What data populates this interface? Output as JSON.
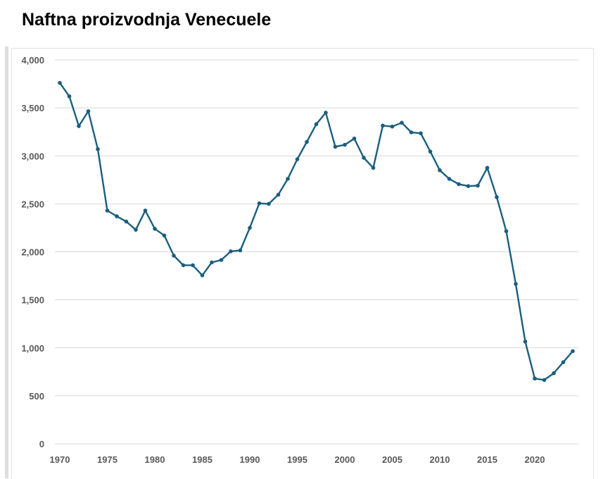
{
  "chart_data": {
    "type": "line",
    "title": "Naftna proizvodnja Venecuele",
    "xlabel": "",
    "ylabel": "",
    "ylim": [
      0,
      4000
    ],
    "xlim": [
      1970,
      2024
    ],
    "grid": true,
    "legend": "none",
    "line_color": "#1b5e7e",
    "grid_color": "#d9d9d9",
    "y_ticks": [
      {
        "value": 0,
        "label": "0"
      },
      {
        "value": 500,
        "label": "500"
      },
      {
        "value": 1000,
        "label": "1,000"
      },
      {
        "value": 1500,
        "label": "1,500"
      },
      {
        "value": 2000,
        "label": "2,000"
      },
      {
        "value": 2500,
        "label": "2,500"
      },
      {
        "value": 3000,
        "label": "3,000"
      },
      {
        "value": 3500,
        "label": "3,500"
      },
      {
        "value": 4000,
        "label": "4,000"
      }
    ],
    "x_ticks": [
      {
        "value": 1970,
        "label": "1970"
      },
      {
        "value": 1975,
        "label": "1975"
      },
      {
        "value": 1980,
        "label": "1980"
      },
      {
        "value": 1985,
        "label": "1985"
      },
      {
        "value": 1990,
        "label": "1990"
      },
      {
        "value": 1995,
        "label": "1995"
      },
      {
        "value": 2000,
        "label": "2000"
      },
      {
        "value": 2005,
        "label": "2005"
      },
      {
        "value": 2010,
        "label": "2010"
      },
      {
        "value": 2015,
        "label": "2015"
      },
      {
        "value": 2020,
        "label": "2020"
      }
    ],
    "series": [
      {
        "name": "Naftna proizvodnja",
        "x": [
          1970,
          1971,
          1972,
          1973,
          1974,
          1975,
          1976,
          1977,
          1978,
          1979,
          1980,
          1981,
          1982,
          1983,
          1984,
          1985,
          1986,
          1987,
          1988,
          1989,
          1990,
          1991,
          1992,
          1993,
          1994,
          1995,
          1996,
          1997,
          1998,
          1999,
          2000,
          2001,
          2002,
          2003,
          2004,
          2005,
          2006,
          2007,
          2008,
          2009,
          2010,
          2011,
          2012,
          2013,
          2014,
          2015,
          2016,
          2017,
          2018,
          2019,
          2020,
          2021,
          2022,
          2023,
          2024
        ],
        "values": [
          3760,
          3620,
          3310,
          3465,
          3070,
          2430,
          2370,
          2315,
          2230,
          2430,
          2240,
          2170,
          1960,
          1860,
          1860,
          1755,
          1890,
          1915,
          2005,
          2015,
          2250,
          2505,
          2500,
          2595,
          2760,
          2965,
          3145,
          3330,
          3450,
          3095,
          3115,
          3180,
          2980,
          2875,
          3315,
          3305,
          3345,
          3245,
          3235,
          3045,
          2850,
          2760,
          2705,
          2685,
          2690,
          2875,
          2570,
          2215,
          1665,
          1065,
          680,
          665,
          735,
          850,
          965
        ]
      }
    ]
  }
}
